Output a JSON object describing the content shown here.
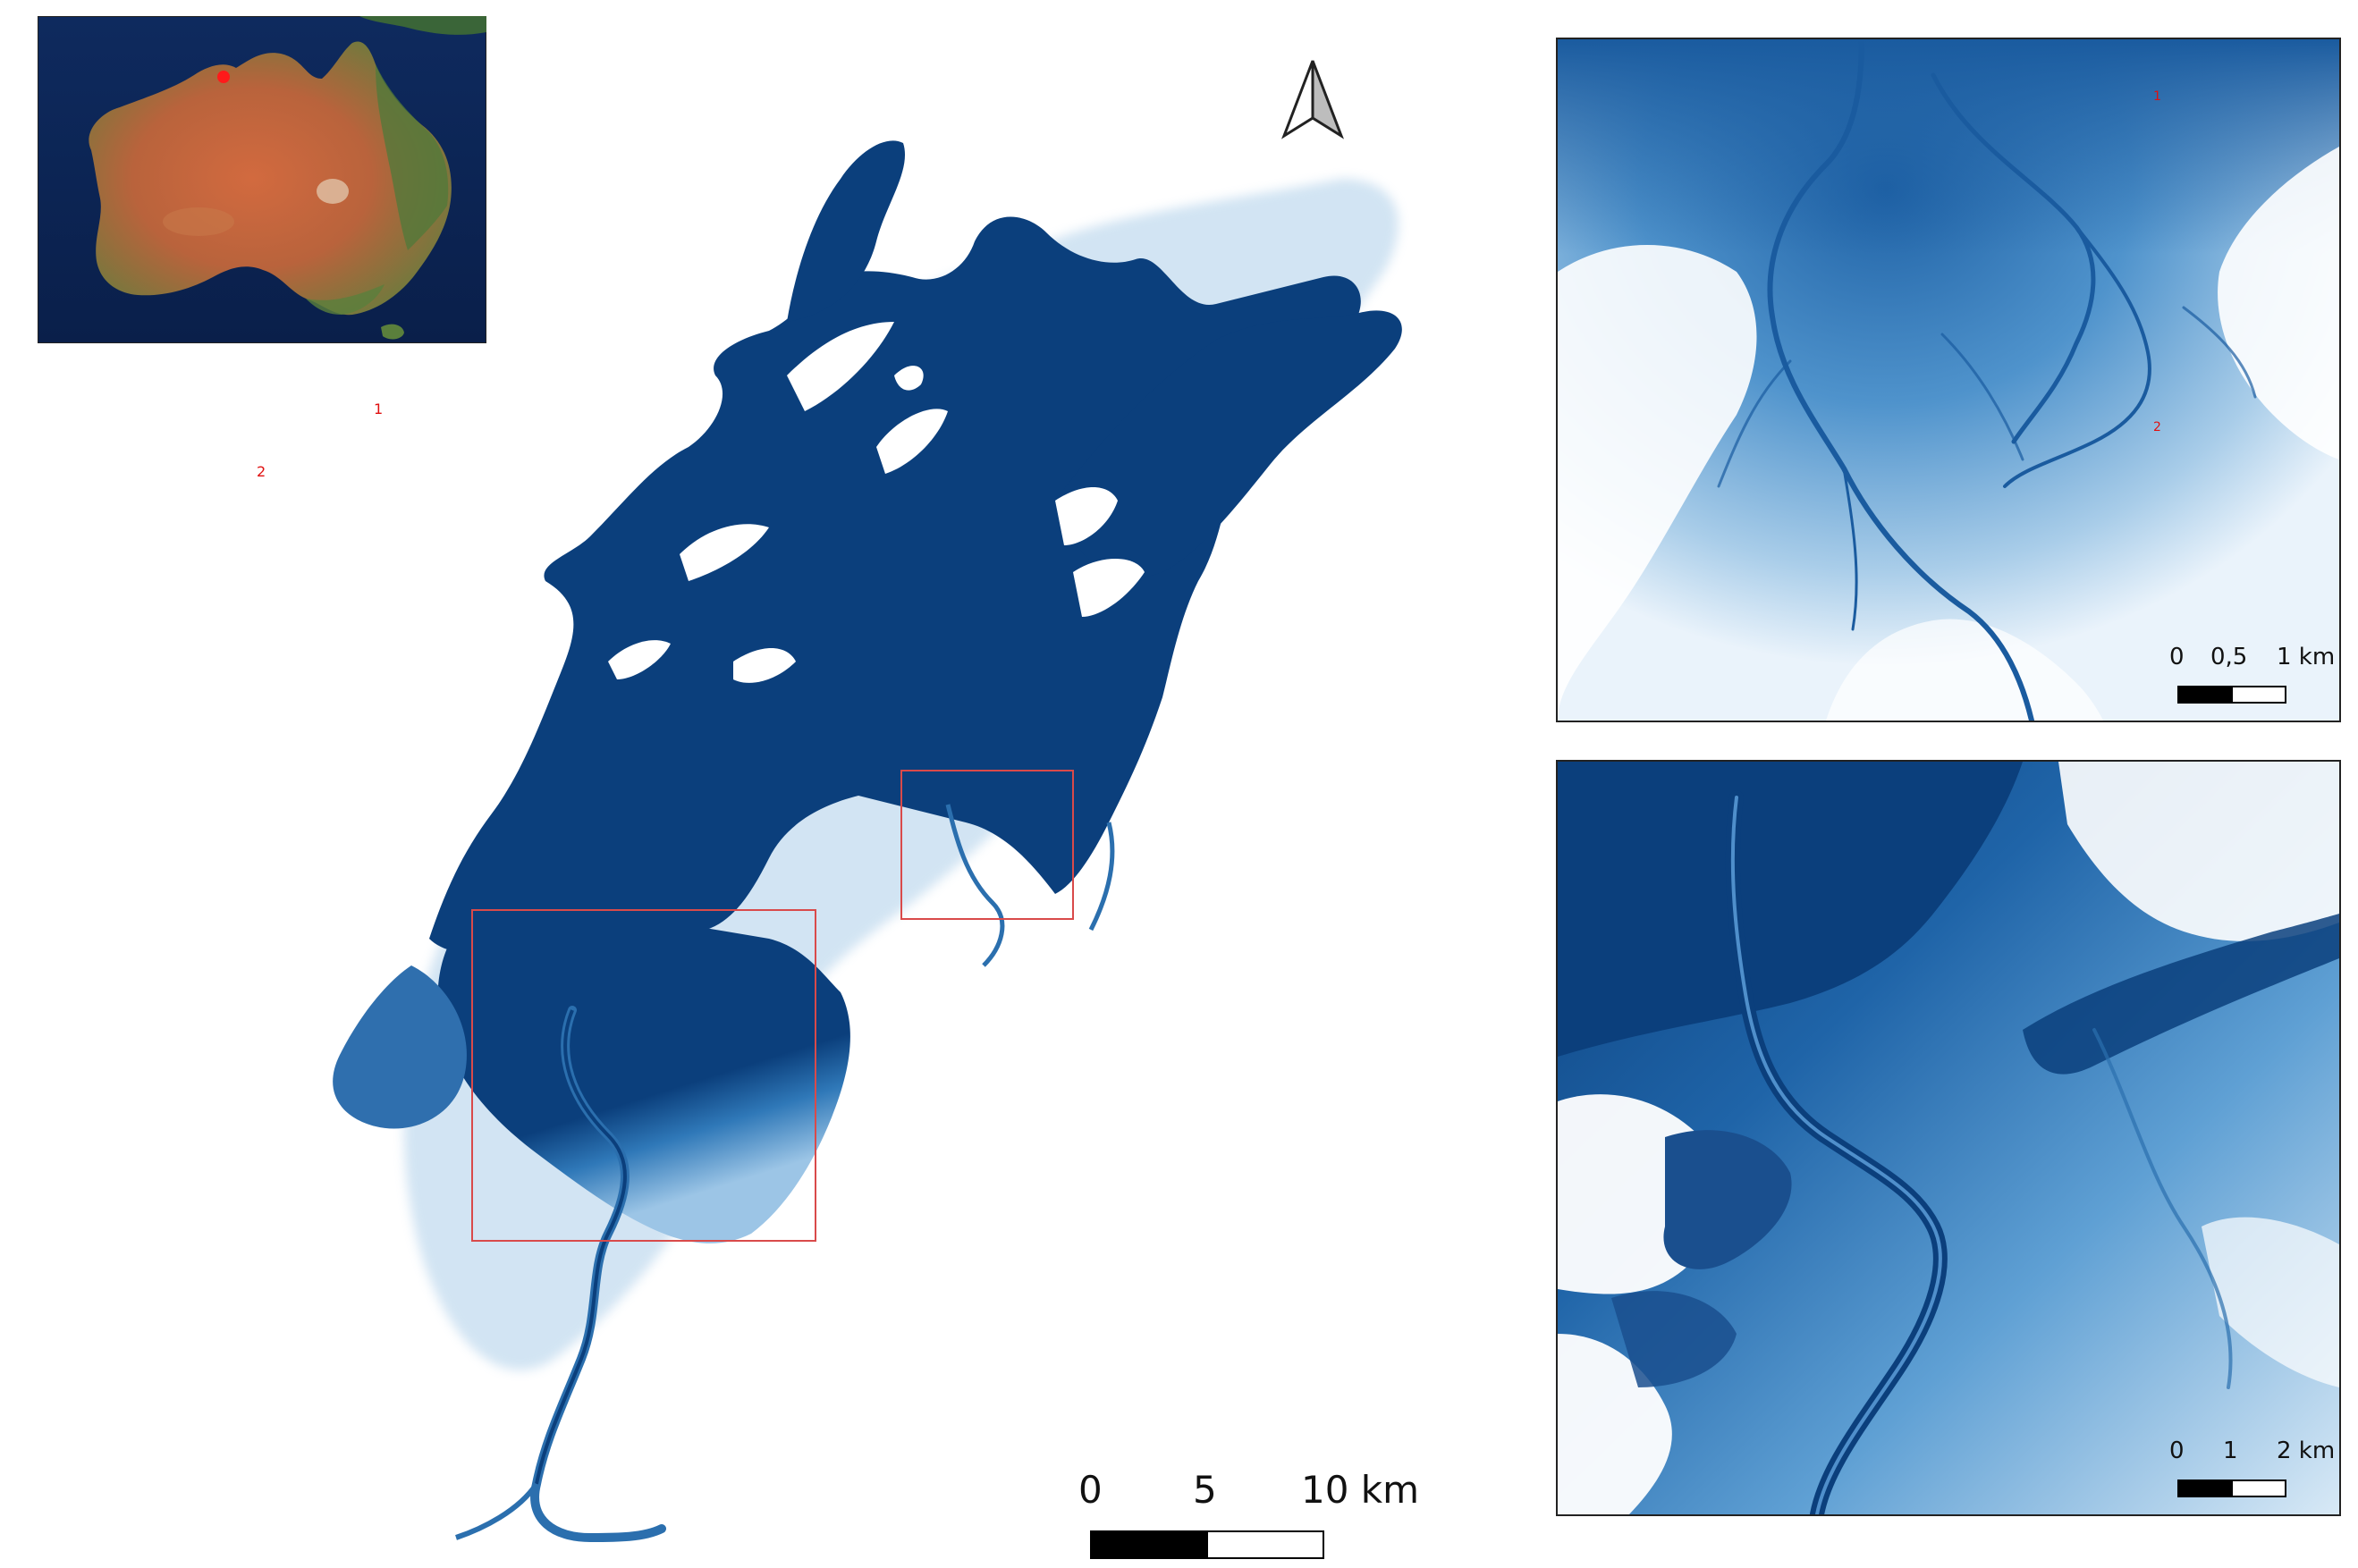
{
  "inset_map": {
    "region": "Australia",
    "marker_color": "#ff1a1a"
  },
  "main_map": {
    "north_arrow_icon": "north-arrow-icon",
    "extent_box_color": "#d94a4a",
    "marker_labels": [
      "1",
      "2"
    ],
    "scale_bar": {
      "ticks": [
        "0",
        "5",
        "10 km"
      ]
    }
  },
  "detail_1": {
    "marker_labels": [
      "1",
      "2"
    ],
    "scale_bar": {
      "ticks": [
        "0",
        "0,5",
        "1 km"
      ]
    }
  },
  "detail_2": {
    "scale_bar": {
      "ticks": [
        "0",
        "1",
        "2 km"
      ]
    }
  },
  "colors": {
    "deep_water": "#0b3f7c",
    "mid_water": "#3f86c2",
    "shallow_water": "#bcd8ee",
    "land": "#ffffff"
  }
}
